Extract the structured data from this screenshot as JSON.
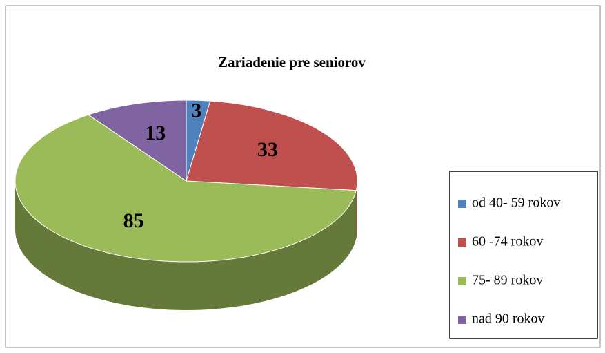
{
  "chart_data": {
    "type": "pie",
    "title": "Zariadenie pre seniorov",
    "categories": [
      "od 40- 59 rokov",
      "60 -74 rokov",
      "75- 89 rokov",
      "nad 90 rokov"
    ],
    "values": [
      3,
      33,
      85,
      13
    ],
    "colors": [
      "#4f81bd",
      "#c0504d",
      "#9bbb59",
      "#8064a2"
    ],
    "legend": "right"
  }
}
